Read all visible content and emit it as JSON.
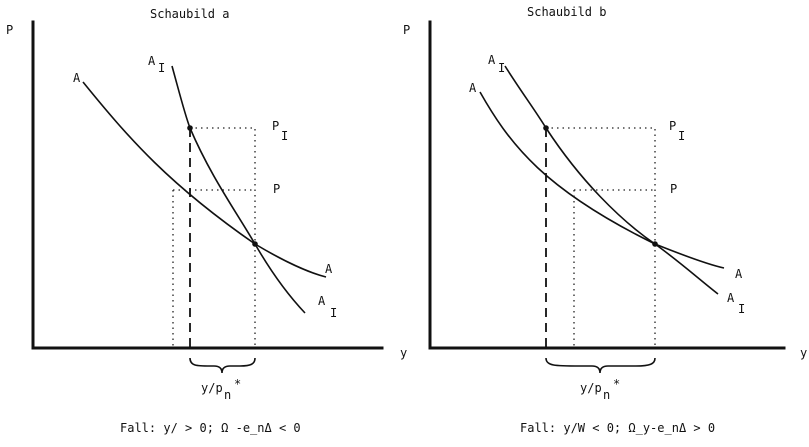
{
  "panels": [
    {
      "title": "Schaubild a",
      "y_axis_label": "P",
      "x_axis_label": "y",
      "curve_A_top": "A",
      "curve_AI_top": "A",
      "curve_AI_top_sub": "I",
      "curve_A_end": "A",
      "curve_AI_end": "A",
      "curve_AI_end_sub": "I",
      "level_PI": "P",
      "level_PI_sub": "I",
      "level_P": "P",
      "brace_label": "y/p",
      "brace_label_sub": "n",
      "brace_label_star": "*",
      "caption": "Fall: y/ > 0; Ω -e_nΔ < 0"
    },
    {
      "title": "Schaubild b",
      "y_axis_label": "P",
      "x_axis_label": "y",
      "curve_A_top": "A",
      "curve_AI_top": "A",
      "curve_AI_top_sub": "I",
      "curve_A_end": "A",
      "curve_AI_end": "A",
      "curve_AI_end_sub": "I",
      "level_PI": "P",
      "level_PI_sub": "I",
      "level_P": "P",
      "brace_label": "y/p",
      "brace_label_sub": "n",
      "brace_label_star": "*",
      "caption": "Fall: y/W < 0; Ω_y-e_nΔ > 0"
    }
  ]
}
